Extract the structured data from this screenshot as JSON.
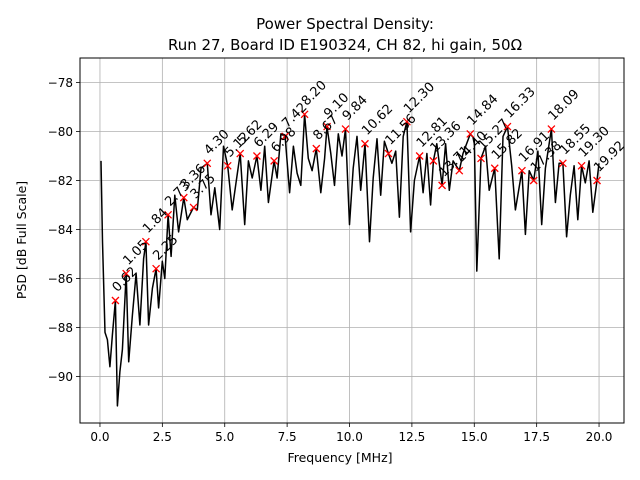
{
  "chart_data": {
    "type": "line",
    "title_line1": "Power Spectral Density:",
    "title_line2": "Run 27, Board ID E190324, CH 82, hi gain, 50Ω",
    "xlabel": "Frequency [MHz]",
    "ylabel": "PSD [dB Full Scale]",
    "xlim": [
      -0.8,
      21.0
    ],
    "ylim": [
      -91.9,
      -77.0
    ],
    "xticks": [
      0.0,
      2.5,
      5.0,
      7.5,
      10.0,
      12.5,
      15.0,
      17.5,
      20.0
    ],
    "xtick_labels": [
      "0.0",
      "2.5",
      "5.0",
      "7.5",
      "10.0",
      "12.5",
      "15.0",
      "17.5",
      "20.0"
    ],
    "yticks": [
      -90,
      -88,
      -86,
      -84,
      -82,
      -80,
      -78
    ],
    "ytick_labels": [
      "−90",
      "−88",
      "−86",
      "−84",
      "−82",
      "−80",
      "−78"
    ],
    "grid": true,
    "line_color": "#000000",
    "marker_color": "#ff0000",
    "spectrum": {
      "name": "PSD",
      "x": [
        0.04,
        0.1,
        0.2,
        0.3,
        0.4,
        0.5,
        0.62,
        0.7,
        0.8,
        0.9,
        1.05,
        1.15,
        1.3,
        1.45,
        1.6,
        1.75,
        1.84,
        1.95,
        2.1,
        2.25,
        2.35,
        2.5,
        2.6,
        2.73,
        2.85,
        3.0,
        3.15,
        3.36,
        3.5,
        3.75,
        3.9,
        4.05,
        4.3,
        4.45,
        4.6,
        4.8,
        4.95,
        5.12,
        5.3,
        5.45,
        5.62,
        5.8,
        5.95,
        6.1,
        6.29,
        6.45,
        6.6,
        6.75,
        6.98,
        7.1,
        7.25,
        7.42,
        7.6,
        7.75,
        7.9,
        8.05,
        8.2,
        8.35,
        8.5,
        8.67,
        8.85,
        9.0,
        9.1,
        9.25,
        9.4,
        9.55,
        9.7,
        9.84,
        10.0,
        10.15,
        10.3,
        10.45,
        10.62,
        10.8,
        10.95,
        11.1,
        11.25,
        11.4,
        11.56,
        11.7,
        11.85,
        12.0,
        12.15,
        12.3,
        12.45,
        12.6,
        12.81,
        12.95,
        13.1,
        13.25,
        13.36,
        13.5,
        13.71,
        13.85,
        14.0,
        14.15,
        14.4,
        14.55,
        14.84,
        15.0,
        15.1,
        15.27,
        15.45,
        15.6,
        15.82,
        16.0,
        16.15,
        16.33,
        16.5,
        16.65,
        16.91,
        17.05,
        17.2,
        17.38,
        17.55,
        17.7,
        17.85,
        18.09,
        18.25,
        18.4,
        18.55,
        18.7,
        18.85,
        19.0,
        19.15,
        19.3,
        19.45,
        19.6,
        19.75,
        19.92,
        20.0
      ],
      "y": [
        -81.2,
        -84.5,
        -88.2,
        -88.5,
        -89.6,
        -88.3,
        -86.9,
        -91.2,
        -89.8,
        -88.9,
        -85.8,
        -89.4,
        -87.5,
        -85.8,
        -87.9,
        -85.2,
        -84.5,
        -87.9,
        -86.4,
        -85.6,
        -87.2,
        -85.3,
        -86.0,
        -83.4,
        -85.1,
        -82.6,
        -84.1,
        -82.7,
        -83.6,
        -83.1,
        -83.2,
        -81.5,
        -81.3,
        -83.4,
        -82.3,
        -84.0,
        -80.6,
        -81.4,
        -83.2,
        -82.1,
        -80.9,
        -83.8,
        -81.2,
        -81.9,
        -81.0,
        -82.4,
        -80.6,
        -82.9,
        -81.2,
        -81.9,
        -80.1,
        -80.2,
        -82.5,
        -80.6,
        -81.7,
        -82.2,
        -79.3,
        -81.1,
        -81.6,
        -80.7,
        -82.5,
        -81.1,
        -79.8,
        -80.9,
        -82.2,
        -80.1,
        -81.0,
        -79.9,
        -83.8,
        -81.5,
        -80.2,
        -82.4,
        -80.5,
        -84.5,
        -81.9,
        -80.3,
        -82.6,
        -80.4,
        -80.9,
        -81.3,
        -80.8,
        -83.5,
        -80.2,
        -79.6,
        -84.1,
        -82.0,
        -81.0,
        -82.5,
        -80.9,
        -83.0,
        -81.2,
        -80.5,
        -82.2,
        -80.5,
        -82.4,
        -81.2,
        -81.6,
        -80.9,
        -80.1,
        -80.3,
        -85.7,
        -81.1,
        -80.6,
        -82.4,
        -81.5,
        -85.2,
        -80.2,
        -79.8,
        -81.4,
        -83.2,
        -81.6,
        -84.2,
        -81.6,
        -82.0,
        -80.8,
        -83.8,
        -81.5,
        -79.9,
        -82.9,
        -81.3,
        -81.3,
        -84.3,
        -82.6,
        -81.4,
        -83.6,
        -81.4,
        -82.1,
        -81.2,
        -83.3,
        -82.0,
        -81.3
      ]
    },
    "peaks": {
      "name": "peaks",
      "x": [
        0.62,
        1.05,
        1.84,
        2.25,
        2.73,
        3.36,
        3.75,
        4.3,
        5.12,
        5.62,
        6.29,
        6.98,
        7.42,
        8.2,
        8.67,
        9.1,
        9.84,
        10.62,
        11.56,
        12.3,
        12.81,
        13.36,
        13.71,
        14.4,
        14.84,
        15.27,
        15.82,
        16.33,
        16.91,
        17.38,
        18.09,
        18.55,
        19.3,
        19.92
      ],
      "y": [
        -86.9,
        -85.8,
        -84.5,
        -85.6,
        -83.4,
        -82.7,
        -83.1,
        -81.3,
        -81.4,
        -80.9,
        -81.0,
        -81.2,
        -80.2,
        -79.3,
        -80.7,
        -79.8,
        -79.9,
        -80.5,
        -80.9,
        -79.6,
        -81.0,
        -81.2,
        -82.2,
        -81.6,
        -80.1,
        -81.1,
        -81.5,
        -79.8,
        -81.6,
        -82.0,
        -79.9,
        -81.3,
        -81.4,
        -82.0
      ],
      "labels": [
        "0.62",
        "1.05",
        "1.84",
        "2.25",
        "2.73",
        "3.36",
        "3.75",
        "4.30",
        "5.12",
        "5.62",
        "6.29",
        "6.98",
        "7.42",
        "8.20",
        "8.67",
        "9.10",
        "9.84",
        "10.62",
        "11.56",
        "12.30",
        "12.81",
        "13.36",
        "13.71",
        "14.40",
        "14.84",
        "15.27",
        "15.82",
        "16.33",
        "16.91",
        "17.38",
        "18.09",
        "18.55",
        "19.30",
        "19.92"
      ]
    }
  }
}
